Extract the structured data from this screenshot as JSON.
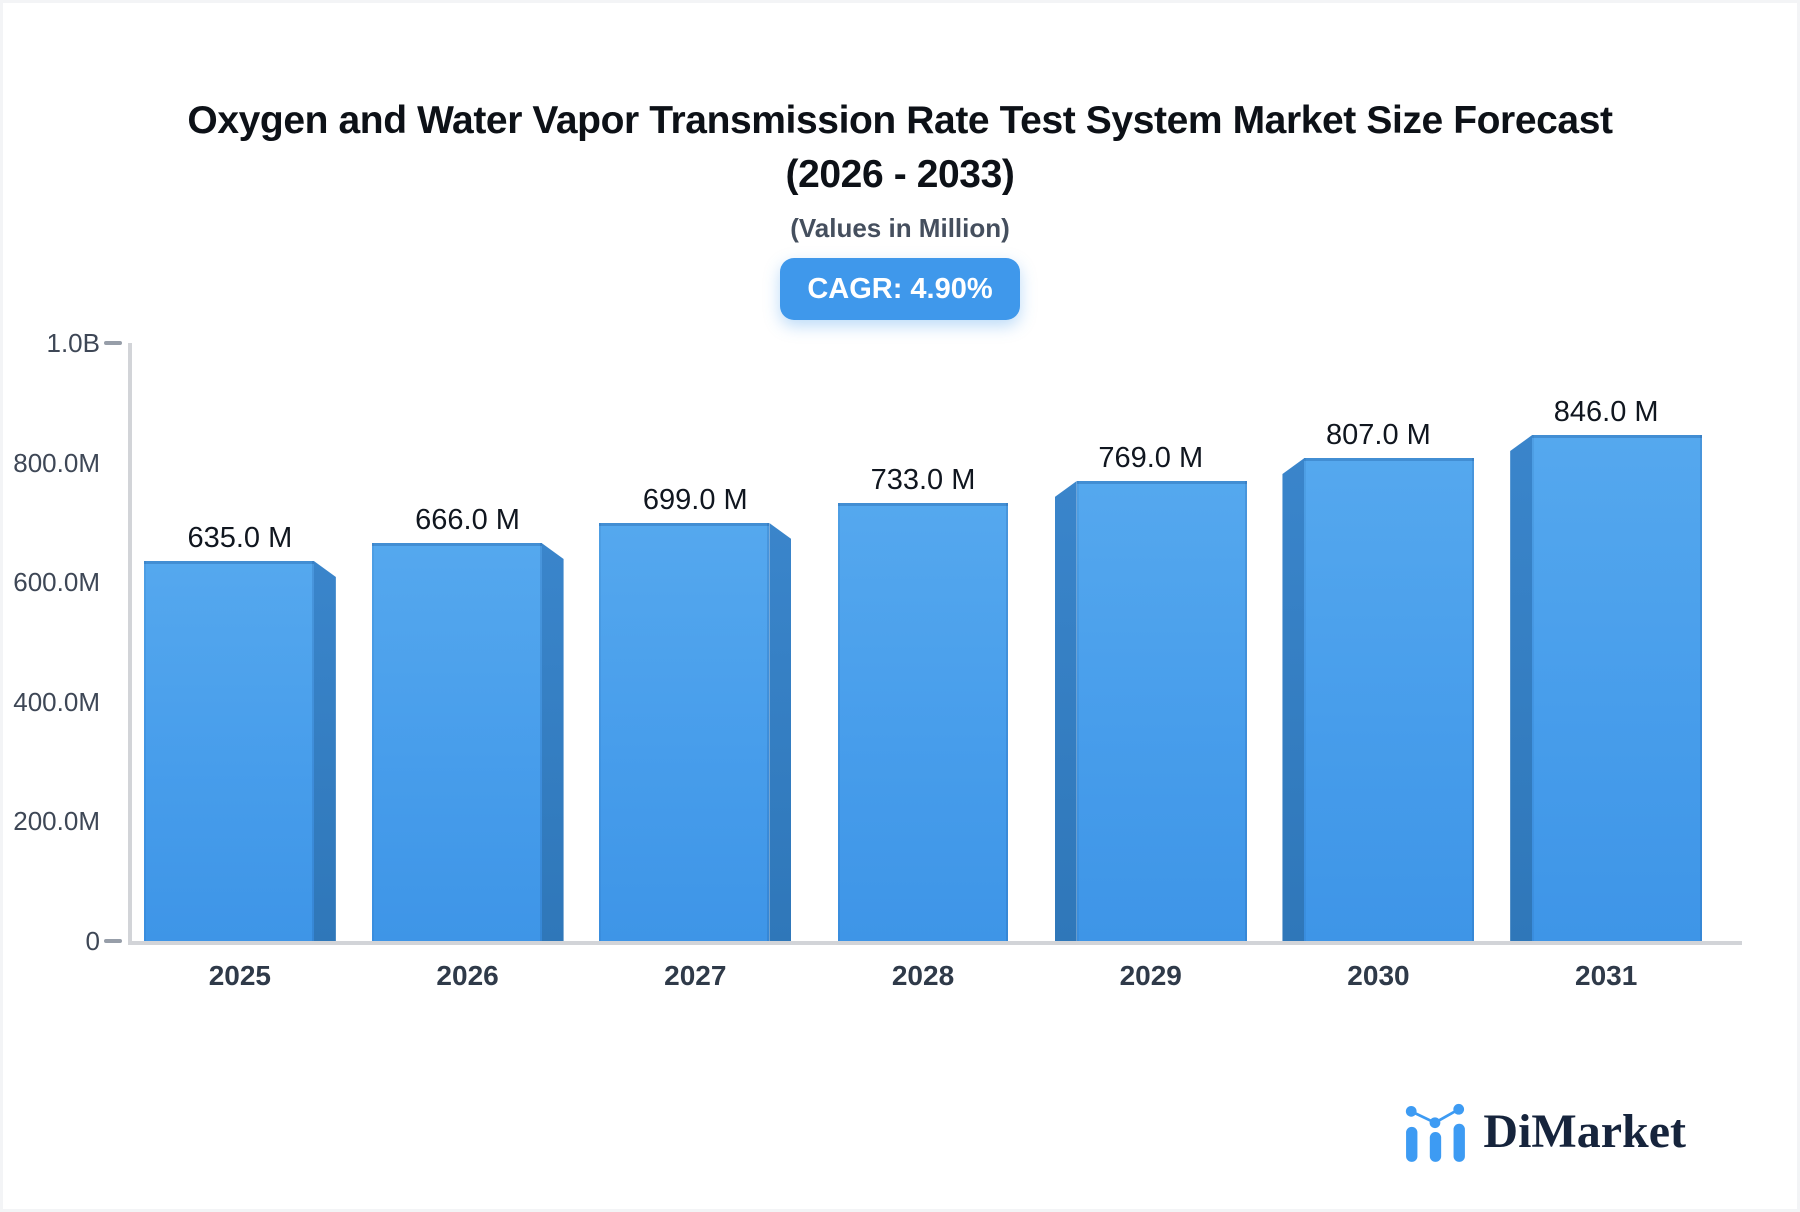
{
  "header": {
    "title_line1": "Oxygen and Water Vapor Transmission Rate Test System Market Size Forecast",
    "title_line2": "(2026 - 2033)",
    "subtitle": "(Values in Million)",
    "cagr_label": "CAGR: 4.90%"
  },
  "chart_data": {
    "type": "bar",
    "title": "Oxygen and Water Vapor Transmission Rate Test System Market Size Forecast (2026 - 2033)",
    "subtitle": "(Values in Million)",
    "categories": [
      "2025",
      "2026",
      "2027",
      "2028",
      "2029",
      "2030",
      "2031"
    ],
    "values": [
      635,
      666,
      699,
      733,
      769,
      807,
      846
    ],
    "value_labels": [
      "635.0 M",
      "666.0 M",
      "699.0 M",
      "733.0 M",
      "769.0 M",
      "807.0 M",
      "846.0 M"
    ],
    "values_unit": "M",
    "cagr_percent": 4.9,
    "ylim": [
      0,
      1000
    ],
    "y_ticks": [
      {
        "label": "1.0B",
        "value": 1000,
        "dash": true
      },
      {
        "label": "800.0M",
        "value": 800,
        "dash": false
      },
      {
        "label": "600.0M",
        "value": 600,
        "dash": false
      },
      {
        "label": "400.0M",
        "value": 400,
        "dash": false
      },
      {
        "label": "200.0M",
        "value": 200,
        "dash": false
      },
      {
        "label": "0",
        "value": 0,
        "dash": true
      }
    ],
    "xlabel": "",
    "ylabel": "",
    "grid": false,
    "legend": false,
    "style": "3d-perspective-bars-center-vanishing-point"
  },
  "colors": {
    "accent_blue": "#3f98eb",
    "bar_face_top": "#55a8ee",
    "bar_face_bottom": "#3e95e7",
    "bar_side_top": "#3a85cb",
    "bar_side_bottom": "#2f77b9",
    "axis_line": "#d2d4d8",
    "tick_dash": "#979ea9",
    "y_axis_text": "#3e4756",
    "x_axis_text": "#2f3a49",
    "value_label_text": "#10161f",
    "title_text": "#0d1117",
    "subtitle_text": "#454f5e",
    "badge_text": "#ffffff",
    "logo_text_color": "#16243c",
    "logo_blue": "#3d9bf3"
  },
  "footer": {
    "logo_text": "DiMarket"
  }
}
